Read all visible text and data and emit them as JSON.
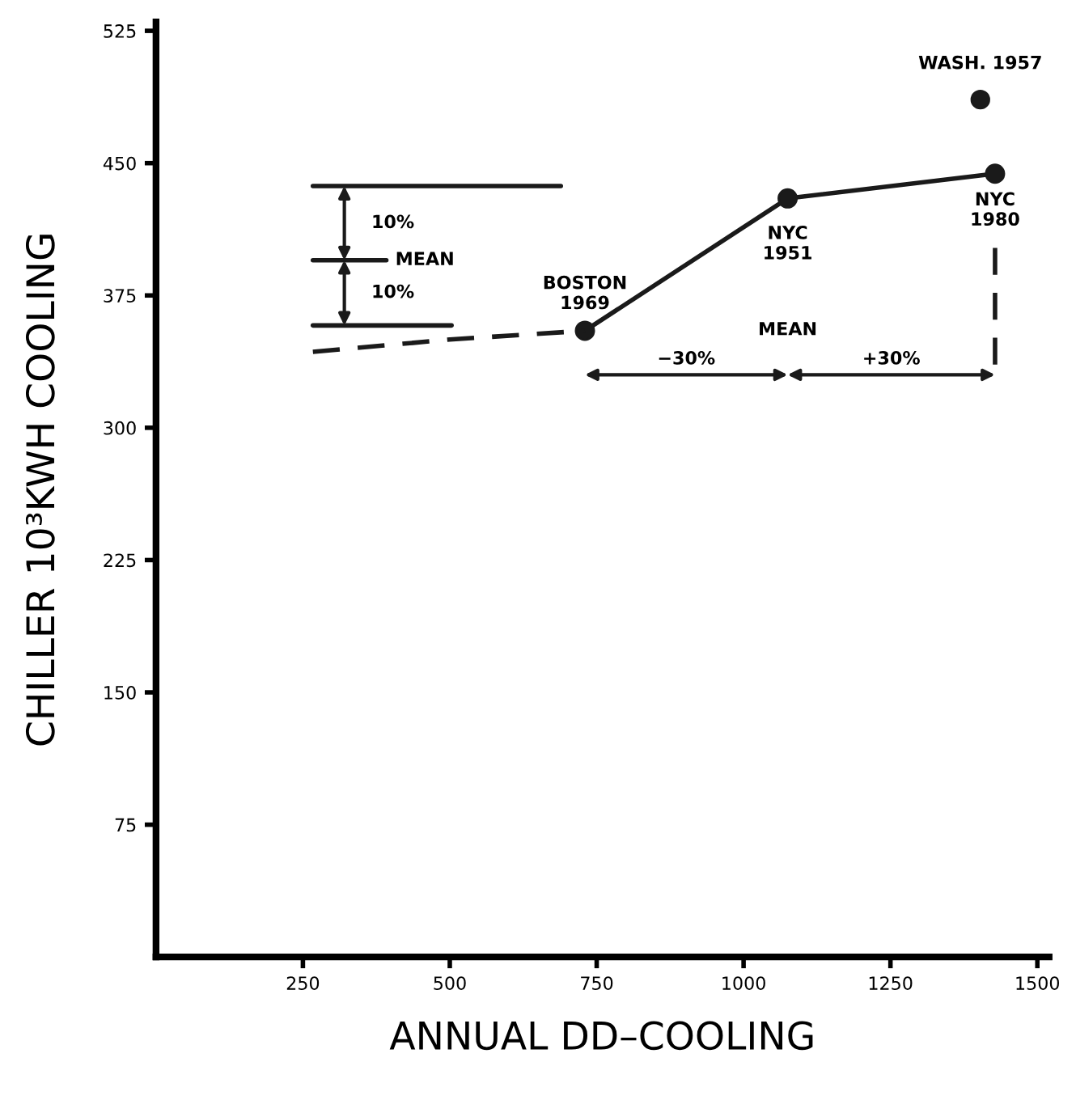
{
  "chart_data": {
    "type": "line",
    "xlabel": "ANNUAL DD–COOLING",
    "ylabel": "CHILLER 10³KWH COOLING",
    "xlim": [
      0,
      1520
    ],
    "ylim": [
      0,
      530
    ],
    "xticks": [
      250,
      500,
      750,
      1000,
      1250,
      1500
    ],
    "yticks": [
      75,
      150,
      225,
      300,
      375,
      450,
      525
    ],
    "grid": false,
    "legend": false,
    "series": [
      {
        "color": "#1a1a1a",
        "x": [
          730,
          1075,
          1428
        ],
        "values": [
          355,
          430,
          444
        ],
        "marker": "circle",
        "line_style": "solid"
      },
      {
        "type": "scatter",
        "color": "#1a1a1a",
        "x": [
          1403
        ],
        "values": [
          486
        ],
        "marker": "circle"
      },
      {
        "color": "#1a1a1a",
        "x": [
          267,
          689
        ],
        "values": [
          437,
          437
        ],
        "marker": "none",
        "line_style": "solid"
      },
      {
        "color": "#1a1a1a",
        "x": [
          267,
          392
        ],
        "values": [
          395,
          395
        ],
        "marker": "none",
        "line_style": "solid"
      },
      {
        "color": "#1a1a1a",
        "x": [
          267,
          503
        ],
        "values": [
          358,
          358
        ],
        "marker": "none",
        "line_style": "solid"
      },
      {
        "color": "#1a1a1a",
        "x": [
          267,
          500,
          730
        ],
        "values": [
          343,
          350,
          355
        ],
        "marker": "none",
        "line_style": "dashed"
      },
      {
        "color": "#1a1a1a",
        "x": [
          1428,
          1428
        ],
        "values": [
          402,
          330
        ],
        "marker": "none",
        "line_style": "dashed"
      }
    ],
    "annotations": [
      "10%",
      {
        "text": "MEAN",
        "x": 392,
        "y": 395
      },
      "10%",
      "−30%",
      "MEAN",
      "+30%",
      {
        "text": "BOSTON\n1969",
        "x": 730,
        "y": 355
      },
      {
        "text": "NYC\n1951",
        "x": 1075,
        "y": 430
      },
      {
        "text": "NYC\n1980",
        "x": 1428,
        "y": 444
      },
      {
        "text": "WASH. 1957",
        "x": 1403,
        "y": 486
      }
    ]
  }
}
